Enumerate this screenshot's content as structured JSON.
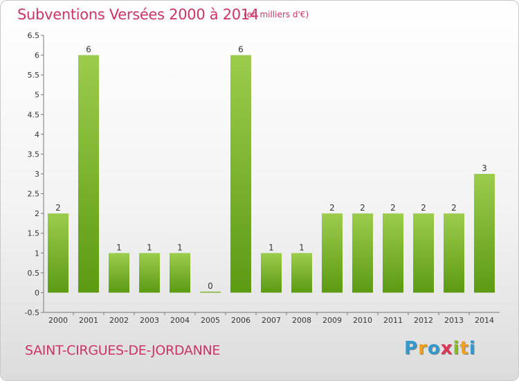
{
  "title": "Subventions Versées 2000 à 2014",
  "subtitle": "(en milliers d'€)",
  "commune": "SAINT-CIRGUES-DE-JORDANNE",
  "logo": {
    "letters": [
      "P",
      "r",
      "o",
      "x",
      "i",
      "t",
      "i"
    ],
    "colors": [
      "#3399cc",
      "#f0a020",
      "#3399cc",
      "#dd3355",
      "#88bb22",
      "#f0a020",
      "#3399cc"
    ]
  },
  "colors": {
    "bar_light": "#9ccc4c",
    "bar_dark": "#5c9a12",
    "accent": "#cc3366"
  },
  "chart_data": {
    "type": "bar",
    "categories": [
      "2000",
      "2001",
      "2002",
      "2003",
      "2004",
      "2005",
      "2006",
      "2007",
      "2008",
      "2009",
      "2010",
      "2011",
      "2012",
      "2013",
      "2014"
    ],
    "values": [
      2,
      6,
      1,
      1,
      1,
      0,
      6,
      1,
      1,
      2,
      2,
      2,
      2,
      2,
      3
    ],
    "data_labels": [
      "2",
      "6",
      "1",
      "1",
      "1",
      "0",
      "6",
      "1",
      "1",
      "2",
      "2",
      "2",
      "2",
      "2",
      "3"
    ],
    "yticks": [
      "-0.5",
      "0",
      "0.5",
      "1",
      "1.5",
      "2",
      "2.5",
      "3",
      "3.5",
      "4",
      "4.5",
      "5",
      "5.5",
      "6",
      "6.5"
    ],
    "ylim": [
      -0.5,
      6.5
    ],
    "grid": false
  }
}
